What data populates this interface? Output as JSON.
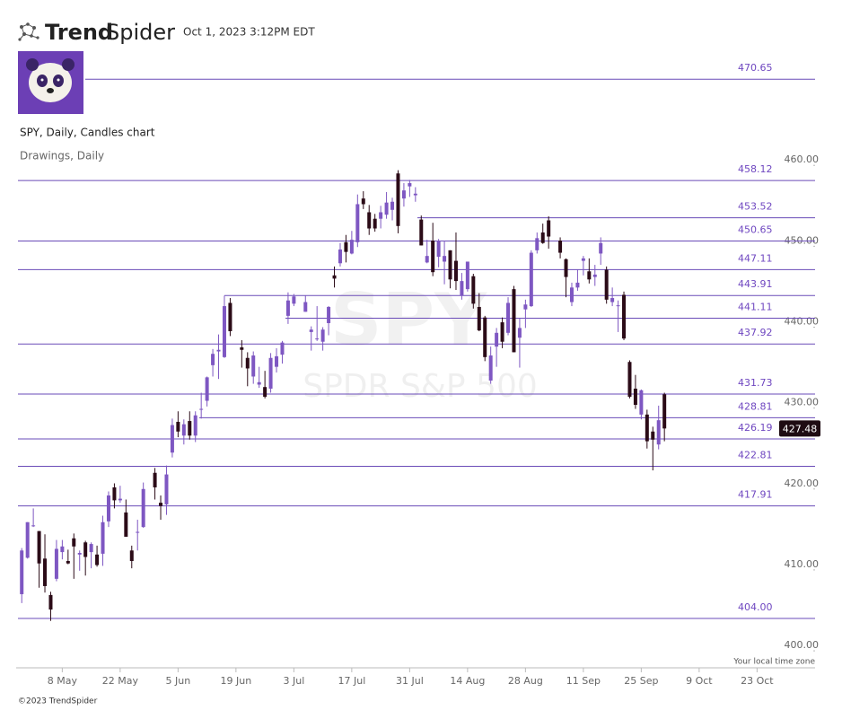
{
  "header": {
    "brand_bold": "Trend",
    "brand_light": "Spider",
    "timestamp": "Oct 1, 2023 3:12PM EDT"
  },
  "footer": "©2023 TrendSpider",
  "chart_data": {
    "type": "candlestick",
    "title": "SPY, Daily, Candles chart",
    "subtitle": "Drawings, Daily",
    "watermark": "SPY",
    "watermark_name": "SPDR S&P 500",
    "time_zone_note": "Your local time zone",
    "up_color": "#7e57c2",
    "down_color": "#2b0b17",
    "level_color": "#6a4bb8",
    "categories": [
      null,
      null,
      null,
      null,
      null,
      null,
      null,
      "8 May",
      null,
      null,
      null,
      null,
      null,
      null,
      null,
      null,
      null,
      "22 May",
      null,
      null,
      null,
      null,
      null,
      null,
      null,
      null,
      null,
      "5 Jun",
      null,
      null,
      null,
      null,
      null,
      null,
      null,
      null,
      null,
      "19 Jun",
      null,
      null,
      null,
      null,
      null,
      null,
      null,
      null,
      null,
      "3 Jul",
      null,
      null,
      null,
      null,
      null,
      null,
      null,
      null,
      null,
      "17 Jul",
      null,
      null,
      null,
      null,
      null,
      null,
      null,
      null,
      null,
      "31 Jul",
      null,
      null,
      null,
      null,
      null,
      null,
      null,
      null,
      null,
      "14 Aug",
      null,
      null,
      null,
      null,
      null,
      null,
      null,
      null,
      null,
      "28 Aug",
      null,
      null,
      null,
      null,
      null,
      null,
      null,
      null,
      null,
      "11 Sep",
      null,
      null,
      null,
      null,
      null,
      null,
      null,
      null,
      null,
      "25 Sep",
      null,
      null,
      null,
      null,
      null,
      null,
      null,
      null,
      null,
      "9 Oct",
      null,
      null,
      null,
      null,
      null,
      null,
      null,
      null,
      null,
      "23 Oct",
      null,
      null,
      null
    ],
    "open": [
      407.0,
      411.5,
      415.5,
      414.8,
      411.4,
      406.9,
      408.9,
      412.2,
      411.1,
      413.9,
      411.9,
      413.4,
      412.2,
      411.9,
      412.0,
      416.0,
      420.2,
      418.6,
      417.1,
      412.4,
      414.7,
      415.3,
      null,
      422.0,
      418.3,
      418.1,
      424.5,
      428.3,
      426.6,
      428.4,
      426.6,
      429.9,
      430.9,
      435.3,
      437.0,
      436.3,
      443.0,
      null,
      437.5,
      436.2,
      433.9,
      432.9,
      432.6,
      432.4,
      435.1,
      436.6,
      441.4,
      442.9,
      null,
      441.9,
      439.4,
      438.6,
      438.2,
      440.5,
      446.4,
      447.9,
      450.5,
      449.1,
      450.5,
      455.9,
      454.2,
      453.4,
      453.4,
      453.9,
      454.5,
      459.0,
      455.9,
      457.4,
      456.3,
      453.3,
      448.0,
      450.7,
      448.7,
      448.1,
      449.5,
      448.2,
      443.9,
      444.7,
      446.3,
      442.5,
      441.2,
      433.4,
      437.6,
      440.6,
      439.3,
      444.7,
      438.7,
      442.2,
      442.6,
      449.5,
      451.7,
      453.2,
      null,
      450.7,
      448.4,
      443.1,
      444.9,
      448.2,
      446.9,
      446.2,
      449.1,
      447.1,
      443.1,
      442.7,
      444.0,
      435.7,
      432.4,
      429.2,
      429.2,
      427.1,
      425.5,
      431.7,
      null,
      null,
      null,
      null,
      null,
      null,
      null,
      null,
      null,
      null,
      null,
      null,
      null,
      null,
      null,
      null,
      null,
      null,
      null
    ],
    "high": [
      412.7,
      415.9,
      417.6,
      414.8,
      414.4,
      407.3,
      413.7,
      413.7,
      412.5,
      414.5,
      412.4,
      413.6,
      413.4,
      413.0,
      416.7,
      419.7,
      420.7,
      420.4,
      418.7,
      413.0,
      416.2,
      420.8,
      null,
      422.6,
      419.2,
      422.9,
      428.7,
      429.6,
      428.6,
      429.6,
      429.6,
      431.9,
      433.9,
      437.3,
      439.1,
      443.9,
      443.6,
      null,
      438.4,
      436.9,
      437.0,
      435.1,
      434.6,
      436.8,
      437.4,
      438.3,
      444.3,
      444.1,
      null,
      443.9,
      440.1,
      442.6,
      440.0,
      442.6,
      447.5,
      450.4,
      451.4,
      451.9,
      456.4,
      456.8,
      455.1,
      454.0,
      455.0,
      456.7,
      456.0,
      459.4,
      457.8,
      458.2,
      457.3,
      453.8,
      450.8,
      452.9,
      450.9,
      450.7,
      449.5,
      451.7,
      446.7,
      448.1,
      446.6,
      444.2,
      441.4,
      437.6,
      439.9,
      441.2,
      443.7,
      445.1,
      441.1,
      443.4,
      449.5,
      451.7,
      452.8,
      453.7,
      null,
      451.1,
      448.5,
      445.5,
      447.1,
      448.8,
      448.5,
      447.7,
      451.1,
      447.5,
      444.9,
      443.3,
      444.4,
      435.9,
      434.1,
      432.3,
      429.8,
      427.7,
      430.3,
      431.9,
      null,
      null,
      null,
      null,
      null,
      null,
      null,
      null,
      null,
      null,
      null,
      null,
      null,
      null,
      null,
      null,
      null,
      null,
      null
    ],
    "low": [
      405.9,
      411.4,
      415.3,
      407.8,
      407.2,
      403.7,
      408.6,
      411.3,
      410.7,
      408.9,
      409.9,
      409.3,
      410.2,
      410.4,
      410.5,
      415.3,
      417.6,
      418.3,
      414.1,
      410.2,
      412.4,
      415.2,
      null,
      418.7,
      416.2,
      416.8,
      423.9,
      426.4,
      425.5,
      426.1,
      425.8,
      428.7,
      430.2,
      433.9,
      433.6,
      436.2,
      438.9,
      null,
      435.0,
      432.7,
      433.0,
      432.5,
      431.2,
      431.9,
      434.4,
      435.5,
      440.4,
      442.6,
      null,
      441.9,
      437.1,
      438.3,
      437.1,
      439.0,
      444.9,
      447.5,
      448.0,
      449.0,
      449.9,
      454.6,
      451.4,
      451.8,
      452.2,
      453.4,
      453.2,
      451.6,
      454.9,
      456.1,
      455.5,
      450.1,
      447.9,
      446.3,
      447.4,
      445.3,
      444.8,
      444.6,
      443.4,
      444.4,
      442.3,
      439.5,
      435.8,
      433.0,
      435.1,
      437.4,
      439.0,
      436.9,
      435.0,
      439.9,
      442.5,
      449.1,
      450.3,
      449.7,
      null,
      448.5,
      443.7,
      442.6,
      444.5,
      446.4,
      445.4,
      445.1,
      447.7,
      442.9,
      442.6,
      439.4,
      438.4,
      431.2,
      429.9,
      428.6,
      425.0,
      422.3,
      424.9,
      425.9,
      null,
      null,
      null,
      null,
      null,
      null,
      null,
      null,
      null,
      null,
      null,
      null,
      null,
      null,
      null,
      null,
      null,
      null,
      null
    ],
    "close": [
      412.4,
      415.9,
      415.5,
      410.8,
      408.0,
      405.1,
      412.6,
      412.9,
      410.8,
      412.9,
      412.1,
      411.6,
      413.2,
      410.6,
      415.9,
      419.2,
      418.6,
      418.8,
      414.1,
      411.1,
      414.7,
      420.0,
      null,
      420.2,
      417.9,
      421.8,
      427.9,
      427.1,
      428.0,
      426.6,
      429.1,
      429.9,
      433.8,
      436.7,
      437.2,
      442.6,
      439.5,
      null,
      437.2,
      434.9,
      436.5,
      433.2,
      431.4,
      436.2,
      436.4,
      438.1,
      443.3,
      443.8,
      null,
      443.1,
      439.7,
      438.6,
      439.7,
      442.5,
      446.0,
      449.6,
      449.3,
      450.8,
      455.2,
      455.2,
      452.2,
      452.2,
      454.2,
      455.4,
      455.5,
      452.5,
      456.9,
      457.8,
      456.5,
      450.1,
      448.8,
      446.8,
      450.7,
      448.8,
      445.9,
      445.7,
      445.7,
      448.1,
      442.9,
      439.6,
      436.3,
      436.5,
      439.3,
      438.2,
      443.0,
      436.9,
      439.9,
      442.8,
      449.2,
      451.0,
      450.4,
      451.2,
      null,
      449.2,
      446.2,
      444.9,
      445.5,
      448.5,
      445.9,
      446.5,
      450.4,
      443.4,
      443.6,
      442.7,
      438.6,
      431.4,
      430.4,
      432.2,
      425.9,
      426.1,
      428.5,
      427.48,
      null,
      null,
      null,
      null,
      null,
      null,
      null,
      null,
      null,
      null,
      null,
      null,
      null,
      null,
      null,
      null,
      null,
      null,
      null
    ],
    "last_price": 427.48,
    "levels": [
      470.65,
      458.12,
      453.52,
      450.65,
      447.11,
      443.91,
      441.11,
      437.92,
      431.73,
      428.81,
      426.19,
      422.81,
      417.91,
      {
        "value": 404,
        "label": "404.00"
      }
    ],
    "ylim": [
      397.9,
      474
    ],
    "yticks": [
      {
        "value": 400,
        "label": "400.00"
      },
      {
        "value": 410,
        "label": "410.00"
      },
      {
        "value": 420,
        "label": "420.00"
      },
      {
        "value": 430,
        "label": "430.00"
      },
      {
        "value": 440,
        "label": "440.00"
      },
      {
        "value": 450,
        "label": "450.00"
      },
      {
        "value": 460,
        "label": "460.00"
      }
    ]
  }
}
